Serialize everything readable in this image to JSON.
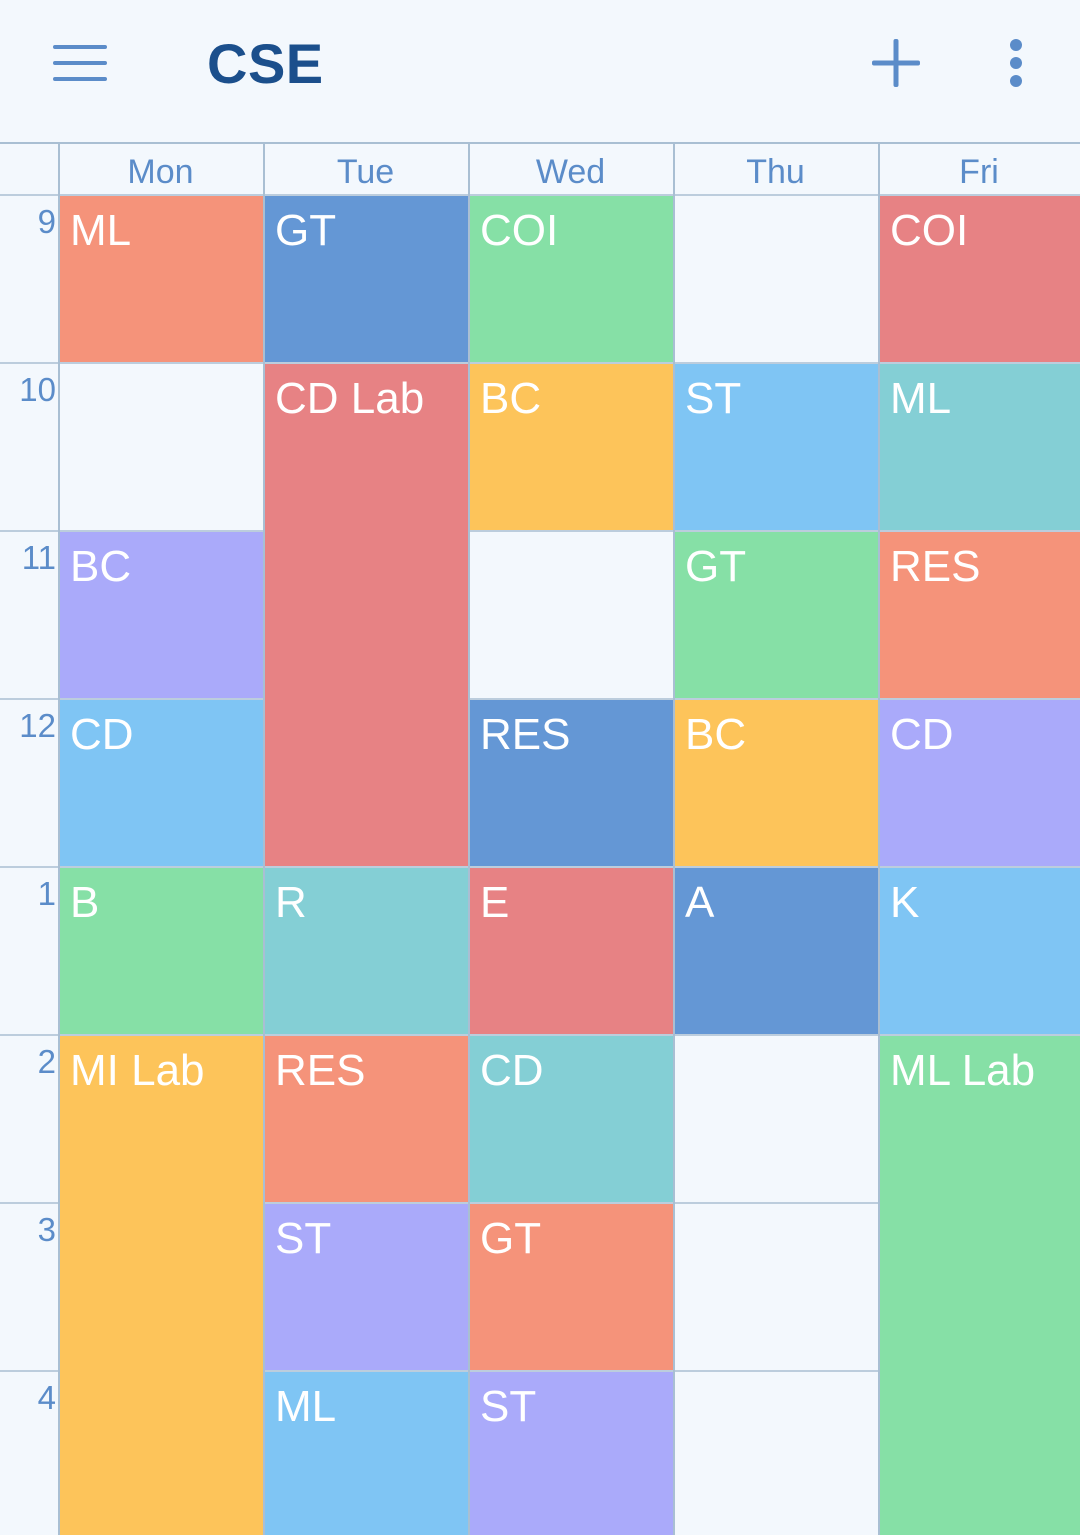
{
  "app_bar": {
    "title": "CSE",
    "icons": {
      "menu": "hamburger-menu-icon",
      "add": "plus-icon",
      "more": "vertical-dots-icon"
    },
    "accent_color": "#1b4f8c",
    "icon_color": "#5b8cc9"
  },
  "timetable": {
    "days": [
      "Mon",
      "Tue",
      "Wed",
      "Thu",
      "Fri"
    ],
    "hours": [
      "9",
      "10",
      "11",
      "12",
      "1",
      "2",
      "3",
      "4"
    ],
    "classes": [
      {
        "day": 0,
        "start": 0,
        "span": 1,
        "label": "ML",
        "color": "#f5937a"
      },
      {
        "day": 0,
        "start": 2,
        "span": 1,
        "label": "BC",
        "color": "#aaaafa"
      },
      {
        "day": 0,
        "start": 3,
        "span": 1,
        "label": "CD",
        "color": "#7fc5f4"
      },
      {
        "day": 0,
        "start": 4,
        "span": 1,
        "label": "B",
        "color": "#86e0a6"
      },
      {
        "day": 0,
        "start": 5,
        "span": 3,
        "label": "MI Lab",
        "color": "#fdc45a"
      },
      {
        "day": 1,
        "start": 0,
        "span": 1,
        "label": "GT",
        "color": "#6497d5"
      },
      {
        "day": 1,
        "start": 1,
        "span": 3,
        "label": "CD Lab",
        "color": "#e78284"
      },
      {
        "day": 1,
        "start": 4,
        "span": 1,
        "label": "R",
        "color": "#84cfd5"
      },
      {
        "day": 1,
        "start": 5,
        "span": 1,
        "label": "RES",
        "color": "#f5937a"
      },
      {
        "day": 1,
        "start": 6,
        "span": 1,
        "label": "ST",
        "color": "#aaaafa"
      },
      {
        "day": 1,
        "start": 7,
        "span": 1,
        "label": "ML",
        "color": "#7fc5f4"
      },
      {
        "day": 2,
        "start": 0,
        "span": 1,
        "label": "COI",
        "color": "#86e0a6"
      },
      {
        "day": 2,
        "start": 1,
        "span": 1,
        "label": "BC",
        "color": "#fdc45a"
      },
      {
        "day": 2,
        "start": 3,
        "span": 1,
        "label": "RES",
        "color": "#6497d5"
      },
      {
        "day": 2,
        "start": 4,
        "span": 1,
        "label": "E",
        "color": "#e78284"
      },
      {
        "day": 2,
        "start": 5,
        "span": 1,
        "label": "CD",
        "color": "#84cfd5"
      },
      {
        "day": 2,
        "start": 6,
        "span": 1,
        "label": "GT",
        "color": "#f5937a"
      },
      {
        "day": 2,
        "start": 7,
        "span": 1,
        "label": "ST",
        "color": "#aaaafa"
      },
      {
        "day": 3,
        "start": 1,
        "span": 1,
        "label": "ST",
        "color": "#7fc5f4"
      },
      {
        "day": 3,
        "start": 2,
        "span": 1,
        "label": "GT",
        "color": "#86e0a6"
      },
      {
        "day": 3,
        "start": 3,
        "span": 1,
        "label": "BC",
        "color": "#fdc45a"
      },
      {
        "day": 3,
        "start": 4,
        "span": 1,
        "label": "A",
        "color": "#6497d5"
      },
      {
        "day": 4,
        "start": 0,
        "span": 1,
        "label": "COI",
        "color": "#e78284"
      },
      {
        "day": 4,
        "start": 1,
        "span": 1,
        "label": "ML",
        "color": "#84cfd5"
      },
      {
        "day": 4,
        "start": 2,
        "span": 1,
        "label": "RES",
        "color": "#f5937a"
      },
      {
        "day": 4,
        "start": 3,
        "span": 1,
        "label": "CD",
        "color": "#aaaafa"
      },
      {
        "day": 4,
        "start": 4,
        "span": 1,
        "label": "K",
        "color": "#7fc5f4"
      },
      {
        "day": 4,
        "start": 5,
        "span": 3,
        "label": "ML Lab",
        "color": "#86e0a6"
      }
    ]
  }
}
